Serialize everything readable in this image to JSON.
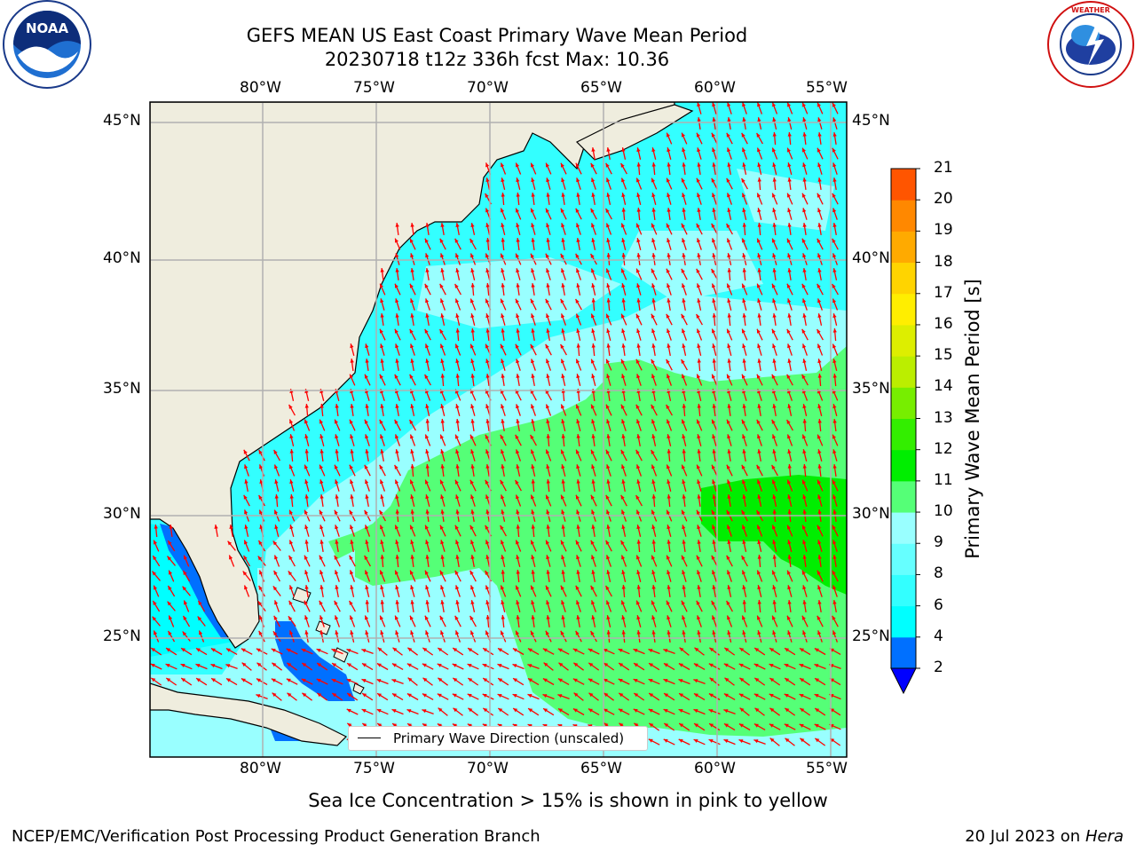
{
  "title": {
    "line1": "GEFS MEAN US East Coast Primary Wave Mean Period",
    "line2": "20230718 t12z 336h fcst   Max: 10.36"
  },
  "logos": {
    "left": "NOAA",
    "right": "NATIONAL WEATHER SERVICE"
  },
  "map": {
    "lon_labels": [
      "80°W",
      "75°W",
      "70°W",
      "65°W",
      "60°W",
      "55°W"
    ],
    "lat_labels": [
      "45°N",
      "40°N",
      "35°N",
      "30°N",
      "25°N"
    ],
    "legend_label": "Primary Wave Direction (unscaled)",
    "arrow_color": "#ff0000",
    "land_color": "#efedde"
  },
  "colorbar": {
    "title": "Primary Wave Mean Period [s]",
    "ticks": [
      "2",
      "4",
      "6",
      "8",
      "9",
      "10",
      "11",
      "12",
      "13",
      "14",
      "15",
      "16",
      "17",
      "18",
      "19",
      "20",
      "21"
    ],
    "colors": [
      "#0070ff",
      "#00ffff",
      "#33ffff",
      "#66ffff",
      "#99ffff",
      "#55ff77",
      "#00ee00",
      "#33ee00",
      "#77ee00",
      "#bbee00",
      "#ddee00",
      "#ffee00",
      "#ffd400",
      "#ffaa00",
      "#ff8800",
      "#ff5500",
      "#ff2200",
      "#ff0000"
    ],
    "under_color": "#0000ff"
  },
  "note": "Sea Ice Concentration > 15% is shown in pink to yellow",
  "footer": {
    "left": "NCEP/EMC/Verification Post Processing Product Generation Branch",
    "date": "20 Jul 2023 on",
    "machine": "Hera"
  }
}
